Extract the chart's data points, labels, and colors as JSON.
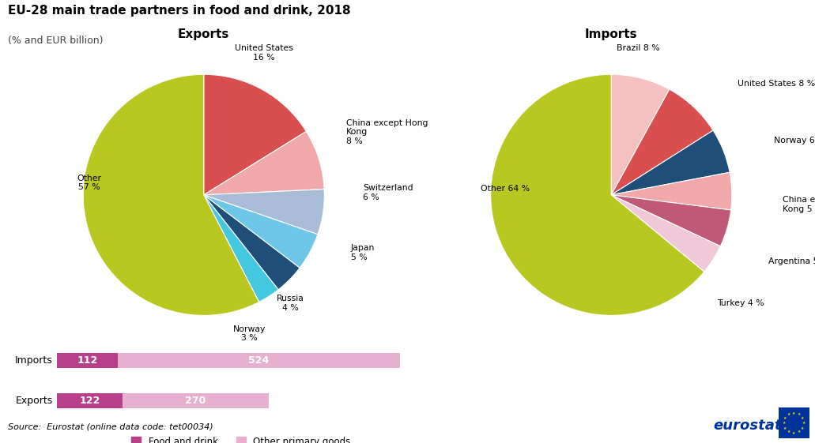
{
  "title": "EU-28 main trade partners in food and drink, 2018",
  "subtitle": "(% and EUR billion)",
  "source": "Source:  Eurostat (online data code: tet00034)",
  "exports_title": "Exports",
  "imports_title": "Imports",
  "exports_values": [
    16,
    8,
    6,
    5,
    4,
    3,
    57
  ],
  "exports_colors": [
    "#d94f4f",
    "#f0a8a8",
    "#a8bcd8",
    "#6ec6e8",
    "#1f4e79",
    "#44c8e0",
    "#b8c820"
  ],
  "imports_values": [
    8,
    8,
    6,
    5,
    5,
    4,
    64
  ],
  "imports_colors": [
    "#f5c0c0",
    "#d94f4f",
    "#1f4e79",
    "#f0a8a8",
    "#c05878",
    "#f0c8d8",
    "#b8c820"
  ],
  "bar_categories": [
    "Imports",
    "Exports"
  ],
  "bar_food_values": [
    112,
    122
  ],
  "bar_other_values": [
    524,
    270
  ],
  "bar_food_color": "#b8408a",
  "bar_other_color": "#e8b0d0",
  "legend_food": "Food and drink",
  "legend_other": "Other primary goods"
}
